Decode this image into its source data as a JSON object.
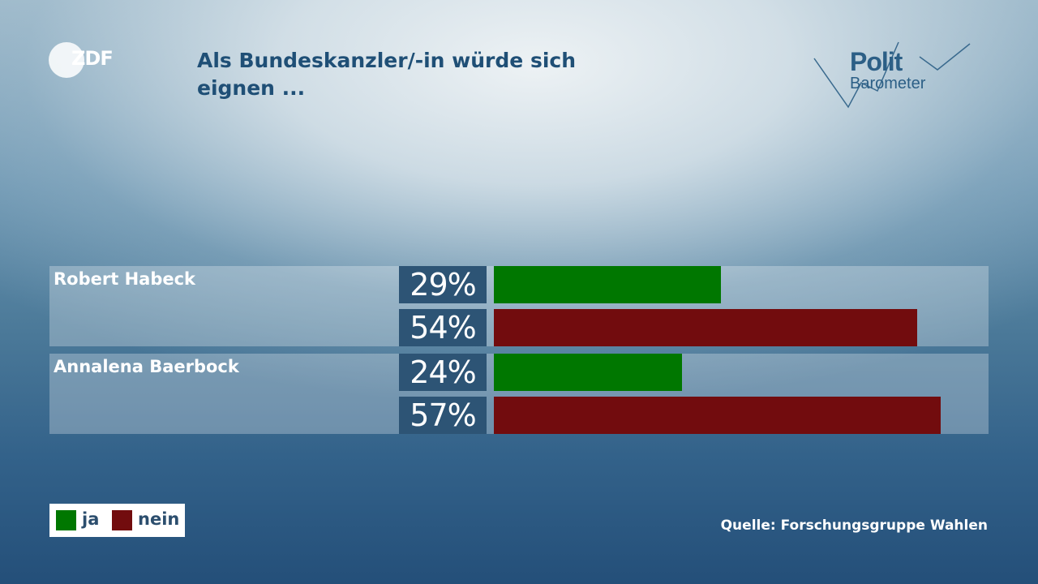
{
  "header": {
    "broadcaster": "ZDF",
    "title": "Als Bundeskanzler/-in würde sich\neignen ...",
    "brand_line1": "Polit",
    "brand_line2": "Barometer"
  },
  "chart_data": {
    "type": "bar",
    "title": "Als Bundeskanzler/-in würde sich eignen ...",
    "orientation": "horizontal",
    "xlim": [
      0,
      60
    ],
    "categories": [
      "Robert Habeck",
      "Annalena Baerbock"
    ],
    "series": [
      {
        "name": "ja",
        "color": "#007700",
        "values": [
          29,
          24
        ],
        "labels": [
          "29%",
          "24%"
        ]
      },
      {
        "name": "nein",
        "color": "#720c0e",
        "values": [
          54,
          57
        ],
        "labels": [
          "54%",
          "57%"
        ]
      }
    ],
    "legend": "bottom-left"
  },
  "legend": {
    "ja_label": "ja",
    "nein_label": "nein"
  },
  "footer": {
    "source": "Quelle: Forschungsgruppe Wahlen"
  }
}
